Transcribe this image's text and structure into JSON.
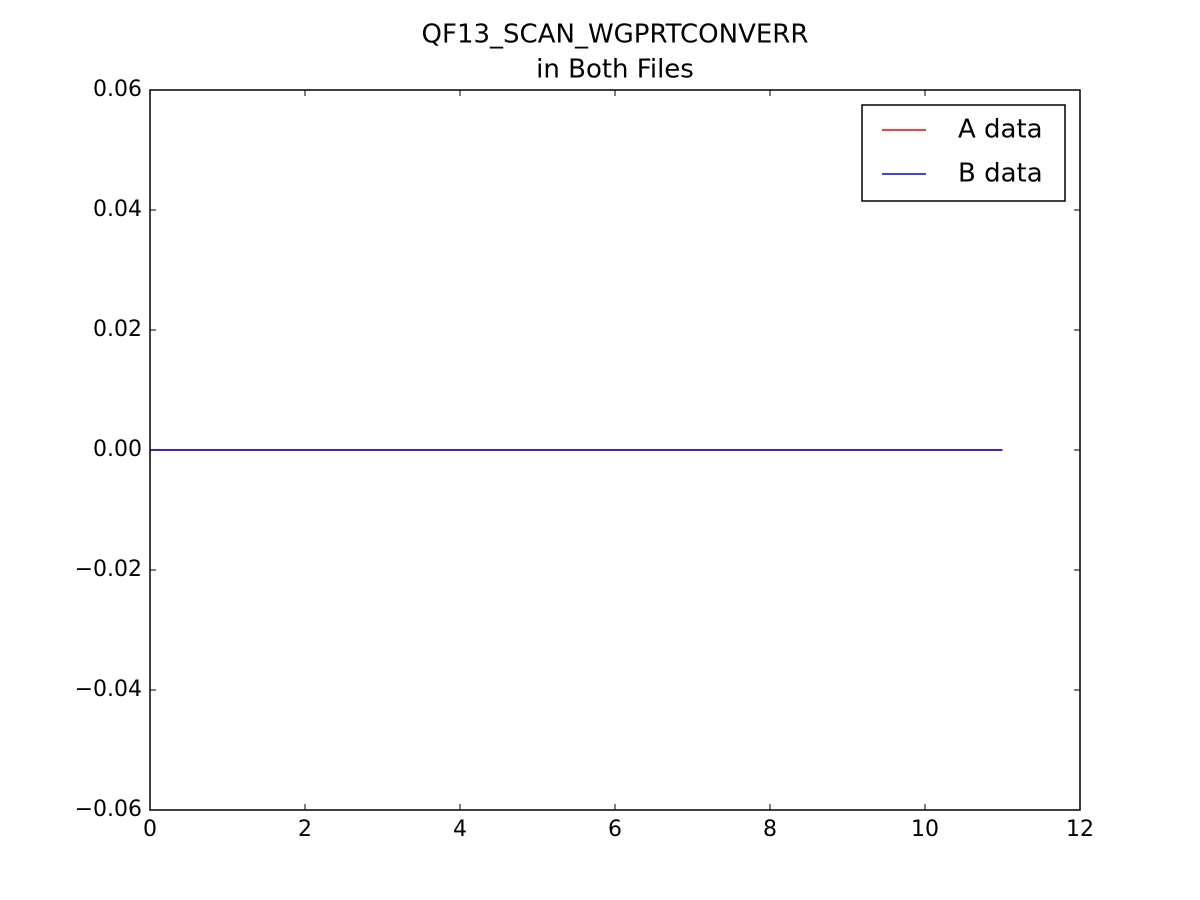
{
  "chart_data": {
    "type": "line",
    "title": [
      "QF13_SCAN_WGPRTCONVERR",
      "in Both Files"
    ],
    "x": [
      0,
      1,
      2,
      3,
      4,
      5,
      6,
      7,
      8,
      9,
      10,
      11
    ],
    "series": [
      {
        "name": "A data",
        "color": "#ff0000",
        "values": [
          0,
          0,
          0,
          0,
          0,
          0,
          0,
          0,
          0,
          0,
          0,
          0
        ]
      },
      {
        "name": "B data",
        "color": "#0000ff",
        "values": [
          0,
          0,
          0,
          0,
          0,
          0,
          0,
          0,
          0,
          0,
          0,
          0
        ]
      }
    ],
    "xlim": [
      0,
      12
    ],
    "xticks": [
      0,
      2,
      4,
      6,
      8,
      10,
      12
    ],
    "ylim": [
      -0.06,
      0.06
    ],
    "yticks": [
      {
        "value": -0.06,
        "label": "−0.06"
      },
      {
        "value": -0.04,
        "label": "−0.04"
      },
      {
        "value": -0.02,
        "label": "−0.02"
      },
      {
        "value": 0,
        "label": "0.00"
      },
      0.02,
      0.04,
      0.06
    ],
    "legend": "upper right",
    "grid": false
  }
}
